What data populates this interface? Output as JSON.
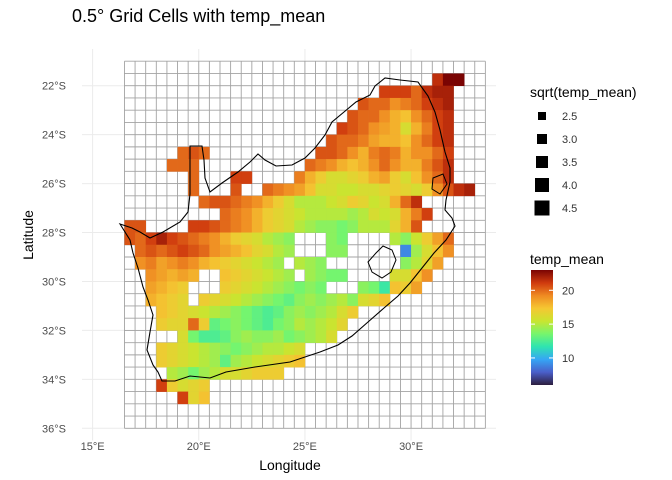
{
  "chart_data": {
    "type": "heatmap",
    "title": "0.5° Grid Cells with temp_mean",
    "xlabel": "Longitude",
    "ylabel": "Latitude",
    "xlim": [
      14.5,
      34.0
    ],
    "ylim": [
      -36.5,
      -20.5
    ],
    "grid_extent": {
      "lon": [
        16.5,
        33.5
      ],
      "lat": [
        -36.0,
        -21.0
      ],
      "cell": 0.5
    },
    "x_ticks": [
      {
        "value": 15,
        "label": "15°E"
      },
      {
        "value": 20,
        "label": "20°E"
      },
      {
        "value": 25,
        "label": "25°E"
      },
      {
        "value": 30,
        "label": "30°E"
      }
    ],
    "y_ticks": [
      {
        "value": -22,
        "label": "22°S"
      },
      {
        "value": -24,
        "label": "24°S"
      },
      {
        "value": -26,
        "label": "26°S"
      },
      {
        "value": -28,
        "label": "28°S"
      },
      {
        "value": -30,
        "label": "30°S"
      },
      {
        "value": -32,
        "label": "32°S"
      },
      {
        "value": -34,
        "label": "34°S"
      },
      {
        "value": -36,
        "label": "36°S"
      }
    ],
    "color_scale": {
      "title": "temp_mean",
      "min": 6,
      "max": 23,
      "ticks": [
        10,
        15,
        20
      ],
      "colors": [
        "#2d1e3e",
        "#4a5fc9",
        "#35a6f5",
        "#2fe4b0",
        "#76f56d",
        "#c9e530",
        "#f5c732",
        "#ef8a22",
        "#cf3a0e",
        "#7a0403"
      ]
    },
    "size_legend": {
      "title": "sqrt(temp_mean)",
      "values": [
        "2.5",
        "3.0",
        "3.5",
        "4.0",
        "4.5"
      ]
    },
    "cells": [
      {
        "row": -22,
        "c0": 31,
        "vals": [
          21.5,
          23,
          23
        ]
      },
      {
        "row": -22.5,
        "c0": 28.5,
        "vals": [
          21,
          21,
          21,
          20,
          21.5,
          22,
          22
        ]
      },
      {
        "row": -23,
        "c0": 27.5,
        "vals": [
          20.5,
          20,
          20,
          19,
          19.5,
          20,
          21,
          21.5,
          22
        ]
      },
      {
        "row": -23.5,
        "c0": 27,
        "vals": [
          20.5,
          20,
          20,
          19,
          18,
          17.5,
          19,
          20,
          21,
          21.5
        ]
      },
      {
        "row": -24,
        "c0": 26.5,
        "vals": [
          21,
          20.5,
          20,
          19,
          18.5,
          18,
          16,
          18,
          19.5,
          21,
          21.5
        ]
      },
      {
        "row": -24.5,
        "c0": 26,
        "vals": [
          20.5,
          20,
          20,
          19.5,
          18.5,
          18,
          18,
          17.5,
          19,
          20,
          21,
          21.5
        ]
      },
      {
        "row": -25,
        "c0": 25.5,
        "vals": [
          20.5,
          20.5,
          20,
          19,
          18,
          19.5,
          20,
          19.5,
          18,
          19,
          19,
          20,
          21
        ]
      },
      {
        "row": -25,
        "c0": 19,
        "vals": [
          20,
          20.5,
          20
        ]
      },
      {
        "row": -25.5,
        "c0": 25,
        "vals": [
          20,
          19.5,
          19,
          18,
          17.5,
          18,
          19,
          20,
          19,
          18,
          18,
          19.5,
          20.5,
          21.5
        ]
      },
      {
        "row": -25.5,
        "c0": 18.5,
        "vals": [
          20,
          20,
          20
        ]
      },
      {
        "row": -26,
        "c0": 24.5,
        "vals": [
          19.5,
          18,
          17,
          16,
          16,
          16.5,
          17,
          18,
          18.5,
          17,
          16,
          17.5,
          19,
          20,
          21.5
        ]
      },
      {
        "row": -26,
        "c0": 19.5,
        "vals": [
          20
        ]
      },
      {
        "row": -26,
        "c0": 21.5,
        "vals": [
          21,
          21
        ]
      },
      {
        "row": -26.5,
        "c0": 23,
        "vals": [
          20,
          19.5,
          19,
          18.5,
          17.5,
          16,
          16,
          15.5,
          15.5,
          16,
          16,
          16.5,
          17,
          16.5,
          16,
          17,
          19,
          20.5,
          21.5,
          22
        ]
      },
      {
        "row": -26.5,
        "c0": 19.5,
        "vals": [
          20
        ]
      },
      {
        "row": -26.5,
        "c0": 21.5,
        "vals": [
          20.5
        ]
      },
      {
        "row": -27,
        "c0": 20,
        "vals": [
          20,
          20.5,
          20.5,
          20,
          19.5,
          19,
          18,
          17,
          16,
          15,
          15,
          15,
          15.5,
          16,
          17,
          16.5,
          15.5,
          16,
          18,
          20,
          21.5
        ]
      },
      {
        "row": -27,
        "c0": 24,
        "vals": []
      },
      {
        "row": -27.5,
        "c0": 21,
        "vals": [
          20,
          19.5,
          19,
          18,
          17,
          16.5,
          16,
          15.5,
          15,
          15,
          15,
          15,
          14.5,
          15,
          16,
          15.5,
          16,
          18,
          19.5,
          21
        ]
      },
      {
        "row": -28,
        "c0": 16.5,
        "vals": [
          20.5,
          20.5
        ]
      },
      {
        "row": -28,
        "c0": 19.5,
        "vals": [
          21,
          21,
          20.5,
          20,
          19.5,
          19,
          18,
          17,
          16.5,
          16,
          15,
          14.5,
          14,
          14,
          13.5,
          14,
          15,
          15,
          15,
          16.5,
          18,
          20.5
        ]
      },
      {
        "row": -28.5,
        "c0": 16.5,
        "vals": [
          20.5,
          20,
          21,
          22,
          21,
          20.5,
          20,
          19.5,
          19,
          18,
          17,
          16.5,
          16,
          15,
          14.5,
          14
        ]
      },
      {
        "row": -28.5,
        "c0": 26,
        "vals": [
          14,
          13.5
        ]
      },
      {
        "row": -28.5,
        "c0": 29,
        "vals": [
          15,
          14,
          15.5,
          17,
          18.5,
          20
        ]
      },
      {
        "row": -29,
        "c0": 17,
        "vals": [
          20,
          20.5,
          20,
          20.5,
          21,
          20.5,
          20,
          19,
          18.5,
          18,
          17.5,
          16.5,
          16,
          15,
          14.5
        ]
      },
      {
        "row": -29,
        "c0": 26,
        "vals": [
          14,
          14
        ]
      },
      {
        "row": -29,
        "c0": 29.5,
        "vals": [
          9,
          14.5,
          16,
          17.5,
          19
        ]
      },
      {
        "row": -29.5,
        "c0": 17,
        "vals": [
          19,
          19.5,
          18.5,
          19,
          19.5,
          19,
          18,
          17.5,
          17,
          16.5,
          16,
          15.5,
          15,
          14.5
        ]
      },
      {
        "row": -29.5,
        "c0": 24.5,
        "vals": [
          15,
          14.5,
          14
        ]
      },
      {
        "row": -29.5,
        "c0": 29.5,
        "vals": [
          14,
          15,
          16.5,
          18.5
        ]
      },
      {
        "row": -30,
        "c0": 17.5,
        "vals": [
          19,
          18.5,
          18,
          18.5,
          18
        ]
      },
      {
        "row": -30,
        "c0": 21,
        "vals": [
          17.5,
          17,
          16.5,
          16,
          15.5,
          15,
          14.5
        ]
      },
      {
        "row": -30,
        "c0": 25,
        "vals": [
          14.5,
          14,
          13.5,
          13.5
        ]
      },
      {
        "row": -30,
        "c0": 29,
        "vals": [
          16,
          16,
          17.5,
          19
        ]
      },
      {
        "row": -30.5,
        "c0": 17.5,
        "vals": [
          18.5,
          18,
          17.5,
          17
        ]
      },
      {
        "row": -30.5,
        "c0": 21,
        "vals": [
          17,
          16.5,
          16,
          15.5,
          15,
          14.5,
          14,
          13.5,
          14,
          13.5
        ]
      },
      {
        "row": -30.5,
        "c0": 27.5,
        "vals": [
          14,
          13.5,
          12,
          17.5,
          17,
          18.5
        ]
      },
      {
        "row": -31,
        "c0": 17.5,
        "vals": [
          18,
          17.5,
          17,
          16.5
        ]
      },
      {
        "row": -31,
        "c0": 20,
        "vals": [
          17,
          16.5,
          16,
          15.5,
          15,
          14.5,
          14,
          13.5,
          13,
          14,
          14.5,
          14,
          14.5,
          15,
          14,
          16,
          16.5,
          17.5
        ]
      },
      {
        "row": -31.5,
        "c0": 18,
        "vals": [
          17.5,
          17,
          16.5,
          16,
          15.5,
          15,
          14.5,
          14,
          13.5,
          13,
          12.5,
          13,
          14,
          14.5,
          14,
          14.5,
          15,
          16,
          17
        ]
      },
      {
        "row": -32,
        "c0": 18,
        "vals": [
          17,
          16.5,
          16.5,
          20,
          17,
          13,
          13.5,
          14,
          13.5,
          13,
          12.5,
          13.5,
          14,
          15,
          14.5,
          15,
          15.5,
          16.5
        ]
      },
      {
        "row": -32.5,
        "c0": 19,
        "vals": [
          16,
          13.5,
          12.5,
          12.5,
          13,
          14,
          14.5,
          14,
          14,
          14.5,
          13.5,
          14,
          14.5,
          15,
          16
        ]
      },
      {
        "row": -33,
        "c0": 18,
        "vals": [
          17,
          16.5,
          16,
          15.5,
          15,
          14.5,
          14,
          13.5,
          14,
          14.5,
          15,
          15,
          15.5,
          16
        ]
      },
      {
        "row": -33.5,
        "c0": 18,
        "vals": [
          17,
          16.5,
          16,
          15.5,
          15,
          14.5,
          13,
          14.5,
          15,
          15.5,
          16,
          16.5,
          17,
          17.5
        ]
      },
      {
        "row": -34,
        "c0": 18.5,
        "vals": [
          15,
          14.5,
          13.5,
          14.5,
          15,
          16,
          16,
          16.5,
          17,
          17,
          17
        ]
      },
      {
        "row": -34.5,
        "c0": 18,
        "vals": [
          21,
          17,
          16,
          16.5,
          17
        ]
      },
      {
        "row": -35,
        "c0": 19,
        "vals": [
          21,
          16.5,
          17.5
        ]
      }
    ]
  }
}
